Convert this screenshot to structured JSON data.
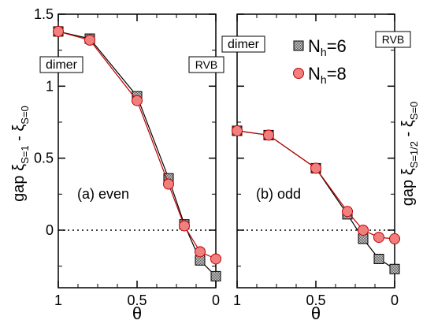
{
  "chart_data": [
    {
      "type": "line",
      "panel_label": "(a) even",
      "xlabel": "θ",
      "ylabel_main": "gap ξ",
      "ylabel_sub1": "S=1",
      "ylabel_mid": " - ξ",
      "ylabel_sub2": "S=0",
      "xlim": [
        1,
        0
      ],
      "ylim": [
        -0.4,
        1.5
      ],
      "x_ticks": [
        1,
        0.5,
        0
      ],
      "x_tick_labels": [
        "1",
        "0.5",
        "0"
      ],
      "y_ticks": [
        0,
        0.5,
        1,
        1.5
      ],
      "y_tick_labels": [
        "0",
        "0.5",
        "1",
        "1.5"
      ],
      "reference_line": 0,
      "annotations": [
        "dimer",
        "RVB"
      ],
      "series": [
        {
          "name": "N_h=6",
          "marker": "square-checker",
          "color": "#9a9a9a",
          "x": [
            1.0,
            0.8,
            0.5,
            0.3,
            0.2,
            0.1,
            0.0
          ],
          "y": [
            1.38,
            1.33,
            0.93,
            0.36,
            0.04,
            -0.21,
            -0.32
          ]
        },
        {
          "name": "N_h=8",
          "marker": "circle",
          "color": "#f08080",
          "x": [
            1.0,
            0.8,
            0.5,
            0.3,
            0.2,
            0.1,
            0.0
          ],
          "y": [
            1.38,
            1.32,
            0.9,
            0.32,
            0.03,
            -0.15,
            -0.2
          ]
        }
      ]
    },
    {
      "type": "line",
      "panel_label": "(b) odd",
      "xlabel": "θ",
      "ylabel_main": "gap ξ",
      "ylabel_sub1": "S=1/2",
      "ylabel_mid": " - ξ",
      "ylabel_sub2": "S=0",
      "xlim": [
        1,
        0
      ],
      "ylim": [
        -0.4,
        1.5
      ],
      "x_ticks": [
        1,
        0.5,
        0
      ],
      "x_tick_labels": [
        "1",
        "0.5",
        "0"
      ],
      "reference_line": 0,
      "annotations": [
        "dimer",
        "RVB"
      ],
      "legend": {
        "placement": "top-right",
        "prefix": "N",
        "sub": "h",
        "labels": [
          "=6",
          "=8"
        ]
      },
      "series": [
        {
          "name": "N_h=6",
          "marker": "square-checker",
          "color": "#9a9a9a",
          "x": [
            1.0,
            0.8,
            0.5,
            0.3,
            0.2,
            0.1,
            0.0
          ],
          "y": [
            0.69,
            0.66,
            0.43,
            0.11,
            -0.06,
            -0.2,
            -0.27
          ]
        },
        {
          "name": "N_h=8",
          "marker": "circle",
          "color": "#f08080",
          "x": [
            1.0,
            0.8,
            0.5,
            0.3,
            0.2,
            0.1,
            0.0
          ],
          "y": [
            0.69,
            0.66,
            0.43,
            0.13,
            0.0,
            -0.05,
            -0.06
          ]
        }
      ]
    }
  ]
}
